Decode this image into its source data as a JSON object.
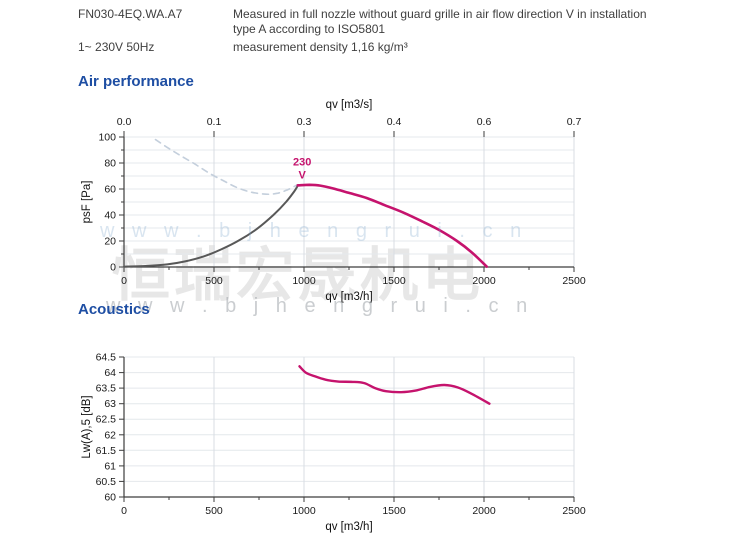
{
  "header": {
    "model": "FN030-4EQ.WA.A7",
    "power": "1~ 230V 50Hz",
    "description_line1": "Measured in full nozzle without guard grille in air flow direction V in installation",
    "description_line2": "type A according to ISO5801",
    "density": "measurement density 1,16 kg/m³"
  },
  "watermark": {
    "cn_text": "恒瑞宏晟机电",
    "url_text": "w w w . b j h e n g r u i . c n"
  },
  "colors": {
    "accent_blue": "#1e4ea3",
    "curve_pink": "#c5136d",
    "curve_gray": "#585858",
    "curve_dashed": "#c4cfdc"
  },
  "chart_data": [
    {
      "type": "line",
      "title": "Air performance",
      "xlabel": "qv [m3/h]",
      "ylabel": "psF [Pa]",
      "xlim": [
        0,
        2500
      ],
      "ylim": [
        0,
        100
      ],
      "x_ticks": [
        0,
        500,
        1000,
        1500,
        2000,
        2500
      ],
      "x_minor_step": 250,
      "y_ticks": [
        0,
        20,
        40,
        60,
        80,
        100
      ],
      "y_minor_step": 10,
      "y_grid_step": 10,
      "grid": "on",
      "top": {
        "title": "qv [m3/s]",
        "labels": [
          "0.0",
          "0.1",
          "0.3",
          "0.4",
          "0.6",
          "0.7"
        ]
      },
      "annotation": {
        "lines": [
          "230",
          "V"
        ],
        "x": 990,
        "y": 80.5,
        "color": "#c5136d"
      },
      "series": [
        {
          "name": "stall-region-curve",
          "color": "#585858",
          "style": "solid",
          "width": 2,
          "points": [
            [
              0,
              0.3
            ],
            [
              120,
              0.8
            ],
            [
              240,
              2
            ],
            [
              340,
              4.3
            ],
            [
              440,
              8
            ],
            [
              540,
              13.5
            ],
            [
              640,
              20.5
            ],
            [
              740,
              29.5
            ],
            [
              830,
              40
            ],
            [
              900,
              50
            ],
            [
              945,
              58
            ],
            [
              965,
              62.5
            ]
          ]
        },
        {
          "name": "aux-dashed-curve",
          "color": "#c4cfdc",
          "style": "dashed",
          "width": 1.6,
          "points": [
            [
              175,
              98
            ],
            [
              240,
              92
            ],
            [
              310,
              86
            ],
            [
              390,
              79.5
            ],
            [
              470,
              72.5
            ],
            [
              550,
              66.5
            ],
            [
              630,
              61
            ],
            [
              710,
              57.5
            ],
            [
              790,
              56
            ],
            [
              855,
              56.8
            ],
            [
              910,
              59.5
            ],
            [
              960,
              63
            ]
          ]
        },
        {
          "name": "operating-curve-230v",
          "color": "#c5136d",
          "style": "solid",
          "width": 2.6,
          "points": [
            [
              965,
              62.8
            ],
            [
              1030,
              63.2
            ],
            [
              1090,
              62.6
            ],
            [
              1160,
              60.5
            ],
            [
              1250,
              57
            ],
            [
              1350,
              53
            ],
            [
              1450,
              47.5
            ],
            [
              1550,
              42
            ],
            [
              1650,
              35.5
            ],
            [
              1750,
              28.5
            ],
            [
              1850,
              20
            ],
            [
              1930,
              11.5
            ],
            [
              2015,
              0.3
            ]
          ]
        }
      ]
    },
    {
      "type": "line",
      "title": "Acoustics",
      "xlabel": "qv [m3/h]",
      "ylabel": "Lw(A),5 [dB]",
      "xlim": [
        0,
        2500
      ],
      "ylim": [
        60,
        64.5
      ],
      "x_ticks": [
        0,
        500,
        1000,
        1500,
        2000,
        2500
      ],
      "x_minor_step": 250,
      "y_ticks": [
        60,
        60.5,
        61,
        61.5,
        62,
        62.5,
        63,
        63.5,
        64,
        64.5
      ],
      "y_grid_step": 0.5,
      "grid": "on",
      "series": [
        {
          "name": "sound-power-curve-230v",
          "color": "#c5136d",
          "style": "solid",
          "width": 2.4,
          "points": [
            [
              975,
              64.2
            ],
            [
              1010,
              64.0
            ],
            [
              1060,
              63.88
            ],
            [
              1120,
              63.77
            ],
            [
              1190,
              63.71
            ],
            [
              1270,
              63.7
            ],
            [
              1335,
              63.66
            ],
            [
              1395,
              63.5
            ],
            [
              1455,
              63.4
            ],
            [
              1540,
              63.37
            ],
            [
              1620,
              63.42
            ],
            [
              1700,
              63.54
            ],
            [
              1780,
              63.6
            ],
            [
              1855,
              63.52
            ],
            [
              1930,
              63.32
            ],
            [
              2030,
              63.0
            ]
          ]
        }
      ]
    }
  ]
}
